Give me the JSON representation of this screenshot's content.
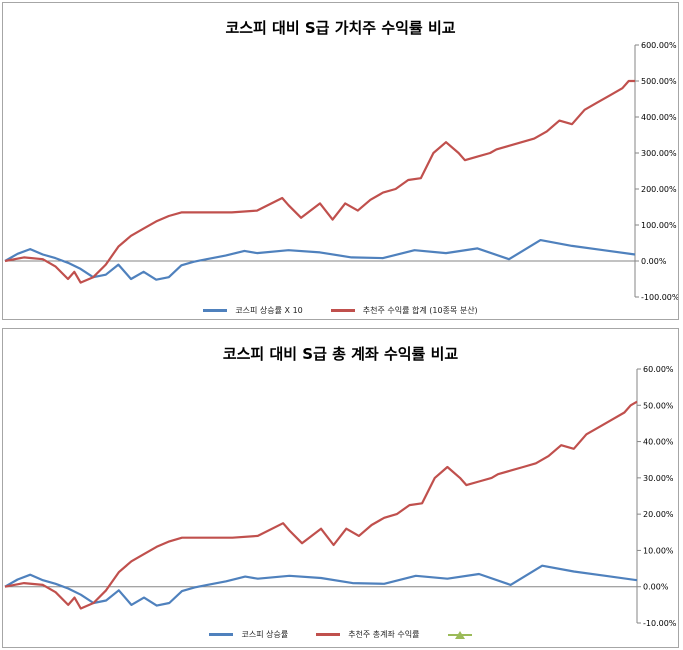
{
  "chart_data": [
    {
      "type": "line",
      "title": "코스피 대비 S급 가치주 수익률 비교",
      "ylim": [
        -100,
        600
      ],
      "yticks": [
        "600.00%",
        "500.00%",
        "400.00%",
        "300.00%",
        "200.00%",
        "100.00%",
        "0.00%",
        "-100.00%"
      ],
      "ytick_values": [
        600,
        500,
        400,
        300,
        200,
        100,
        0,
        -100
      ],
      "axis_position": "right",
      "legend_position": "bottom",
      "series": [
        {
          "name": "코스피 상승률 X 10",
          "color": "#4f81bd",
          "x": [
            0,
            2,
            4,
            6,
            8,
            10,
            12,
            14,
            16,
            18,
            20,
            22,
            24,
            26,
            28,
            30,
            32,
            35,
            38,
            40,
            45,
            50,
            55,
            60,
            65,
            70,
            75,
            80,
            85,
            90,
            95,
            100
          ],
          "y": [
            0,
            20,
            33,
            18,
            8,
            -5,
            -22,
            -45,
            -38,
            -10,
            -50,
            -30,
            -52,
            -45,
            -12,
            -2,
            5,
            15,
            28,
            22,
            30,
            24,
            10,
            8,
            30,
            22,
            35,
            5,
            58,
            42,
            30,
            18
          ]
        },
        {
          "name": "추천주 수익률 합계 (10종목 분산)",
          "color": "#c0504d",
          "x": [
            0,
            3,
            6,
            8,
            10,
            11,
            12,
            14,
            16,
            18,
            20,
            22,
            24,
            26,
            28,
            32,
            36,
            40,
            44,
            45,
            47,
            50,
            52,
            54,
            56,
            58,
            60,
            62,
            64,
            66,
            68,
            70,
            72,
            73,
            75,
            77,
            78,
            80,
            82,
            84,
            86,
            88,
            90,
            92,
            94,
            96,
            98,
            99,
            100
          ],
          "y": [
            0,
            10,
            5,
            -15,
            -50,
            -30,
            -60,
            -45,
            -10,
            40,
            70,
            90,
            110,
            125,
            135,
            135,
            135,
            140,
            175,
            155,
            120,
            160,
            115,
            160,
            140,
            170,
            190,
            200,
            225,
            230,
            300,
            330,
            300,
            280,
            290,
            300,
            310,
            320,
            330,
            340,
            360,
            390,
            380,
            420,
            440,
            460,
            480,
            500,
            500
          ]
        }
      ]
    },
    {
      "type": "line",
      "title": "코스피 대비 S급 총 계좌 수익률 비교",
      "ylim": [
        -10,
        60
      ],
      "yticks": [
        "60.00%",
        "50.00%",
        "40.00%",
        "30.00%",
        "20.00%",
        "10.00%",
        "0.00%",
        "-10.00%"
      ],
      "ytick_values": [
        60,
        50,
        40,
        30,
        20,
        10,
        0,
        -10
      ],
      "axis_position": "right",
      "legend_position": "bottom",
      "series": [
        {
          "name": "코스피 상승률",
          "color": "#4f81bd",
          "x": [
            0,
            2,
            4,
            6,
            8,
            10,
            12,
            14,
            16,
            18,
            20,
            22,
            24,
            26,
            28,
            30,
            32,
            35,
            38,
            40,
            45,
            50,
            55,
            60,
            65,
            70,
            75,
            80,
            85,
            90,
            95,
            100
          ],
          "y": [
            0,
            2.0,
            3.3,
            1.8,
            0.8,
            -0.5,
            -2.2,
            -4.5,
            -3.8,
            -1.0,
            -5.0,
            -3.0,
            -5.2,
            -4.5,
            -1.2,
            -0.2,
            0.5,
            1.5,
            2.8,
            2.2,
            3.0,
            2.4,
            1.0,
            0.8,
            3.0,
            2.2,
            3.5,
            0.5,
            5.8,
            4.2,
            3.0,
            1.8
          ]
        },
        {
          "name": "추천주 총계좌 수익률",
          "color": "#c0504d",
          "x": [
            0,
            3,
            6,
            8,
            10,
            11,
            12,
            14,
            16,
            18,
            20,
            22,
            24,
            26,
            28,
            32,
            36,
            40,
            44,
            45,
            47,
            50,
            52,
            54,
            56,
            58,
            60,
            62,
            64,
            66,
            68,
            70,
            72,
            73,
            75,
            77,
            78,
            80,
            82,
            84,
            86,
            88,
            90,
            92,
            94,
            96,
            98,
            99,
            100
          ],
          "y": [
            0,
            1.0,
            0.5,
            -1.5,
            -5.0,
            -3.0,
            -6.0,
            -4.5,
            -1.0,
            4.0,
            7.0,
            9.0,
            11.0,
            12.5,
            13.5,
            13.5,
            13.5,
            14.0,
            17.5,
            15.5,
            12.0,
            16.0,
            11.5,
            16.0,
            14.0,
            17.0,
            19.0,
            20.0,
            22.5,
            23.0,
            30.0,
            33.0,
            30.0,
            28.0,
            29.0,
            30.0,
            31.0,
            32.0,
            33.0,
            34.0,
            36.0,
            39.0,
            38.0,
            42.0,
            44.0,
            46.0,
            48.0,
            50.0,
            51.0
          ]
        },
        {
          "name": "",
          "color": "#9bbb59",
          "x": [],
          "y": []
        }
      ]
    }
  ]
}
